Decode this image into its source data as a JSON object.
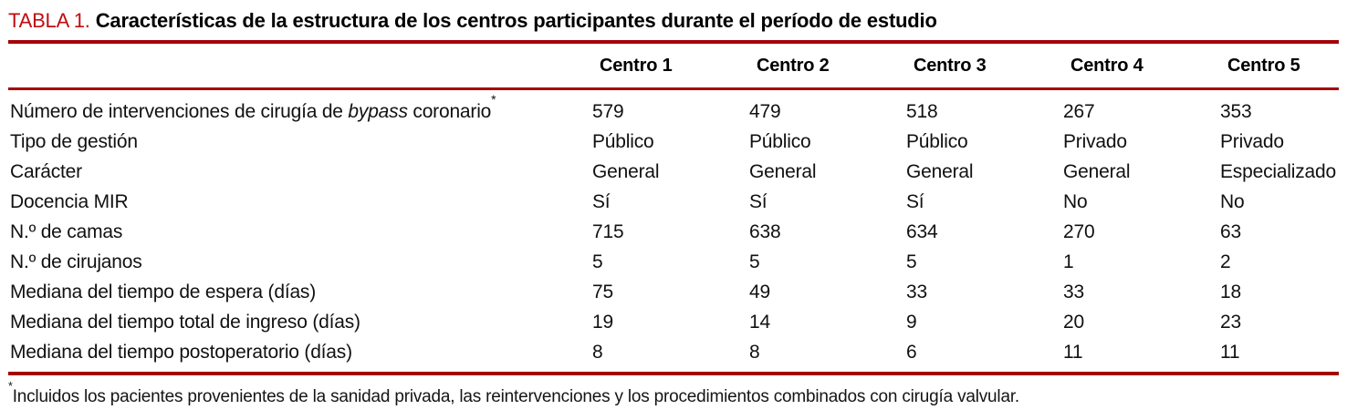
{
  "title": {
    "label": "TABLA 1.",
    "text": "Características de la estructura de los centros participantes durante el período de estudio"
  },
  "colors": {
    "accent_text": "#c00d12",
    "rule": "#a50008"
  },
  "table": {
    "columns": [
      "Centro 1",
      "Centro 2",
      "Centro 3",
      "Centro 4",
      "Centro 5"
    ],
    "rows": [
      {
        "label_pre": "Número de intervenciones de cirugía de ",
        "label_italic": "bypass",
        "label_post": " coronario",
        "label_sup": "*",
        "values": [
          "579",
          "479",
          "518",
          "267",
          "353"
        ]
      },
      {
        "label_pre": "Tipo de gestión",
        "values": [
          "Público",
          "Público",
          "Público",
          "Privado",
          "Privado"
        ]
      },
      {
        "label_pre": "Carácter",
        "values": [
          "General",
          "General",
          "General",
          "General",
          "Especializado"
        ]
      },
      {
        "label_pre": "Docencia MIR",
        "values": [
          "Sí",
          "Sí",
          "Sí",
          "No",
          "No"
        ]
      },
      {
        "label_pre": "N.º de camas",
        "values": [
          "715",
          "638",
          "634",
          "270",
          "63"
        ]
      },
      {
        "label_pre": "N.º de cirujanos",
        "values": [
          "5",
          "5",
          "5",
          "1",
          "2"
        ]
      },
      {
        "label_pre": "Mediana del tiempo de espera (días)",
        "values": [
          "75",
          "49",
          "33",
          "33",
          "18"
        ]
      },
      {
        "label_pre": "Mediana del tiempo total de ingreso (días)",
        "values": [
          "19",
          "14",
          "9",
          "20",
          "23"
        ]
      },
      {
        "label_pre": "Mediana del tiempo postoperatorio (días)",
        "values": [
          "8",
          "8",
          "6",
          "11",
          "11"
        ]
      }
    ]
  },
  "footnote": {
    "marker": "*",
    "text": "Incluidos los pacientes provenientes de la sanidad privada, las reintervenciones y los procedimientos combinados con cirugía valvular."
  }
}
